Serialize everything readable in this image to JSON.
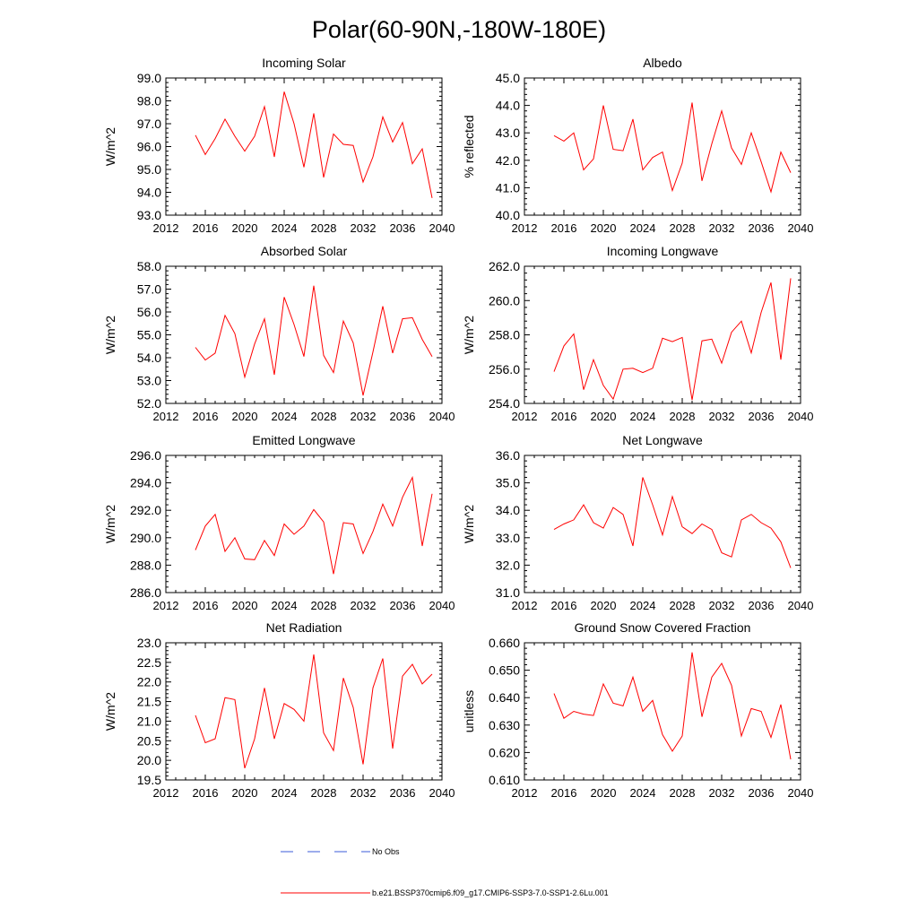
{
  "figure": {
    "title": "Polar(60-90N,-180W-180E)",
    "legend": {
      "obs_label": "No Obs",
      "obs_color": "#3b5bd8",
      "model_label": "b.e21.BSSP370cmip6.f09_g17.CMIP6-SSP3-7.0-SSP1-2.6Lu.001",
      "model_color": "#ff0000"
    }
  },
  "chart_data": [
    {
      "type": "line",
      "title": "Incoming Solar",
      "ylabel": "W/m^2",
      "xlim": [
        2012,
        2040
      ],
      "xticks": [
        "2012",
        "2016",
        "2020",
        "2024",
        "2028",
        "2032",
        "2036",
        "2040"
      ],
      "ylim": [
        93.0,
        99.0
      ],
      "yticks": [
        "93.0",
        "94.0",
        "95.0",
        "96.0",
        "97.0",
        "98.0",
        "99.0"
      ],
      "x": [
        2015,
        2016,
        2017,
        2018,
        2019,
        2020,
        2021,
        2022,
        2023,
        2024,
        2025,
        2026,
        2027,
        2028,
        2029,
        2030,
        2031,
        2032,
        2033,
        2034,
        2035,
        2036,
        2037,
        2038,
        2039
      ],
      "series": [
        {
          "values": [
            96.5,
            95.65,
            96.35,
            97.2,
            96.45,
            95.8,
            96.45,
            97.75,
            95.55,
            98.4,
            97.0,
            95.1,
            97.45,
            94.65,
            96.55,
            96.1,
            96.05,
            94.45,
            95.55,
            97.3,
            96.2,
            97.05,
            95.25,
            95.9,
            93.75
          ],
          "color": "#ff0000"
        }
      ],
      "grid": false
    },
    {
      "type": "line",
      "title": "Albedo",
      "ylabel": "% reflected",
      "xlim": [
        2012,
        2040
      ],
      "xticks": [
        "2012",
        "2016",
        "2020",
        "2024",
        "2028",
        "2032",
        "2036",
        "2040"
      ],
      "ylim": [
        40.0,
        45.0
      ],
      "yticks": [
        "40.0",
        "41.0",
        "42.0",
        "43.0",
        "44.0",
        "45.0"
      ],
      "x": [
        2015,
        2016,
        2017,
        2018,
        2019,
        2020,
        2021,
        2022,
        2023,
        2024,
        2025,
        2026,
        2027,
        2028,
        2029,
        2030,
        2031,
        2032,
        2033,
        2034,
        2035,
        2036,
        2037,
        2038,
        2039
      ],
      "series": [
        {
          "values": [
            42.9,
            42.7,
            43.0,
            41.65,
            42.05,
            44.0,
            42.4,
            42.35,
            43.5,
            41.65,
            42.1,
            42.3,
            40.9,
            41.9,
            44.1,
            41.25,
            42.6,
            43.8,
            42.45,
            41.85,
            43.0,
            41.95,
            40.85,
            42.3,
            41.55
          ],
          "color": "#ff0000"
        }
      ],
      "grid": false
    },
    {
      "type": "line",
      "title": "Absorbed Solar",
      "ylabel": "W/m^2",
      "xlim": [
        2012,
        2040
      ],
      "xticks": [
        "2012",
        "2016",
        "2020",
        "2024",
        "2028",
        "2032",
        "2036",
        "2040"
      ],
      "ylim": [
        52.0,
        58.0
      ],
      "yticks": [
        "52.0",
        "53.0",
        "54.0",
        "55.0",
        "56.0",
        "57.0",
        "58.0"
      ],
      "x": [
        2015,
        2016,
        2017,
        2018,
        2019,
        2020,
        2021,
        2022,
        2023,
        2024,
        2025,
        2026,
        2027,
        2028,
        2029,
        2030,
        2031,
        2032,
        2033,
        2034,
        2035,
        2036,
        2037,
        2038,
        2039
      ],
      "series": [
        {
          "values": [
            54.45,
            53.9,
            54.2,
            55.85,
            55.05,
            53.15,
            54.6,
            55.7,
            53.25,
            56.65,
            55.45,
            54.05,
            57.15,
            54.1,
            53.35,
            55.6,
            54.65,
            52.35,
            54.25,
            56.25,
            54.2,
            55.7,
            55.75,
            54.8,
            54.05
          ],
          "color": "#ff0000"
        }
      ],
      "grid": false
    },
    {
      "type": "line",
      "title": "Incoming Longwave",
      "ylabel": "W/m^2",
      "xlim": [
        2012,
        2040
      ],
      "xticks": [
        "2012",
        "2016",
        "2020",
        "2024",
        "2028",
        "2032",
        "2036",
        "2040"
      ],
      "ylim": [
        254.0,
        262.0
      ],
      "yticks": [
        "254.0",
        "256.0",
        "258.0",
        "260.0",
        "262.0"
      ],
      "x": [
        2015,
        2016,
        2017,
        2018,
        2019,
        2020,
        2021,
        2022,
        2023,
        2024,
        2025,
        2026,
        2027,
        2028,
        2029,
        2030,
        2031,
        2032,
        2033,
        2034,
        2035,
        2036,
        2037,
        2038,
        2039
      ],
      "series": [
        {
          "values": [
            255.85,
            257.35,
            258.05,
            254.8,
            256.55,
            255.05,
            254.25,
            256.0,
            256.05,
            255.8,
            256.05,
            257.8,
            257.6,
            257.85,
            254.2,
            257.65,
            257.75,
            256.35,
            258.15,
            258.8,
            256.95,
            259.3,
            261.05,
            256.55,
            261.3
          ],
          "color": "#ff0000"
        }
      ],
      "grid": false
    },
    {
      "type": "line",
      "title": "Emitted Longwave",
      "ylabel": "W/m^2",
      "xlim": [
        2012,
        2040
      ],
      "xticks": [
        "2012",
        "2016",
        "2020",
        "2024",
        "2028",
        "2032",
        "2036",
        "2040"
      ],
      "ylim": [
        286.0,
        296.0
      ],
      "yticks": [
        "286.0",
        "288.0",
        "290.0",
        "292.0",
        "294.0",
        "296.0"
      ],
      "x": [
        2015,
        2016,
        2017,
        2018,
        2019,
        2020,
        2021,
        2022,
        2023,
        2024,
        2025,
        2026,
        2027,
        2028,
        2029,
        2030,
        2031,
        2032,
        2033,
        2034,
        2035,
        2036,
        2037,
        2038,
        2039
      ],
      "series": [
        {
          "values": [
            289.1,
            290.85,
            291.7,
            289.0,
            290.0,
            288.45,
            288.4,
            289.8,
            288.7,
            291.0,
            290.25,
            290.85,
            292.05,
            291.15,
            287.35,
            291.1,
            291.0,
            288.85,
            290.45,
            292.45,
            290.85,
            292.95,
            294.4,
            289.4,
            293.2
          ],
          "color": "#ff0000"
        }
      ],
      "grid": false
    },
    {
      "type": "line",
      "title": "Net Longwave",
      "ylabel": "W/m^2",
      "xlim": [
        2012,
        2040
      ],
      "xticks": [
        "2012",
        "2016",
        "2020",
        "2024",
        "2028",
        "2032",
        "2036",
        "2040"
      ],
      "ylim": [
        31.0,
        36.0
      ],
      "yticks": [
        "31.0",
        "32.0",
        "33.0",
        "34.0",
        "35.0",
        "36.0"
      ],
      "x": [
        2015,
        2016,
        2017,
        2018,
        2019,
        2020,
        2021,
        2022,
        2023,
        2024,
        2025,
        2026,
        2027,
        2028,
        2029,
        2030,
        2031,
        2032,
        2033,
        2034,
        2035,
        2036,
        2037,
        2038,
        2039
      ],
      "series": [
        {
          "values": [
            33.3,
            33.5,
            33.65,
            34.2,
            33.55,
            33.35,
            34.1,
            33.85,
            32.7,
            35.2,
            34.2,
            33.1,
            34.5,
            33.4,
            33.15,
            33.5,
            33.3,
            32.45,
            32.3,
            33.65,
            33.85,
            33.55,
            33.35,
            32.85,
            31.9
          ],
          "color": "#ff0000"
        }
      ],
      "grid": false
    },
    {
      "type": "line",
      "title": "Net Radiation",
      "ylabel": "W/m^2",
      "xlim": [
        2012,
        2040
      ],
      "xticks": [
        "2012",
        "2016",
        "2020",
        "2024",
        "2028",
        "2032",
        "2036",
        "2040"
      ],
      "ylim": [
        19.5,
        23.0
      ],
      "yticks": [
        "19.5",
        "20.0",
        "20.5",
        "21.0",
        "21.5",
        "22.0",
        "22.5",
        "23.0"
      ],
      "x": [
        2015,
        2016,
        2017,
        2018,
        2019,
        2020,
        2021,
        2022,
        2023,
        2024,
        2025,
        2026,
        2027,
        2028,
        2029,
        2030,
        2031,
        2032,
        2033,
        2034,
        2035,
        2036,
        2037,
        2038,
        2039
      ],
      "series": [
        {
          "values": [
            21.15,
            20.45,
            20.55,
            21.6,
            21.55,
            19.8,
            20.55,
            21.85,
            20.55,
            21.45,
            21.3,
            21.0,
            22.7,
            20.7,
            20.25,
            22.1,
            21.35,
            19.9,
            21.85,
            22.6,
            20.3,
            22.15,
            22.45,
            21.95,
            22.2
          ],
          "color": "#ff0000"
        }
      ],
      "grid": false
    },
    {
      "type": "line",
      "title": "Ground Snow Covered Fraction",
      "ylabel": "unitless",
      "xlim": [
        2012,
        2040
      ],
      "xticks": [
        "2012",
        "2016",
        "2020",
        "2024",
        "2028",
        "2032",
        "2036",
        "2040"
      ],
      "ylim": [
        0.61,
        0.66
      ],
      "yticks": [
        "0.610",
        "0.620",
        "0.630",
        "0.640",
        "0.650",
        "0.660"
      ],
      "x": [
        2015,
        2016,
        2017,
        2018,
        2019,
        2020,
        2021,
        2022,
        2023,
        2024,
        2025,
        2026,
        2027,
        2028,
        2029,
        2030,
        2031,
        2032,
        2033,
        2034,
        2035,
        2036,
        2037,
        2038,
        2039
      ],
      "series": [
        {
          "values": [
            0.6415,
            0.6325,
            0.635,
            0.634,
            0.6335,
            0.645,
            0.638,
            0.637,
            0.6475,
            0.635,
            0.639,
            0.6265,
            0.6205,
            0.626,
            0.6565,
            0.633,
            0.6475,
            0.6525,
            0.6445,
            0.626,
            0.636,
            0.635,
            0.6255,
            0.6375,
            0.6175
          ],
          "color": "#ff0000"
        }
      ],
      "grid": false
    }
  ]
}
